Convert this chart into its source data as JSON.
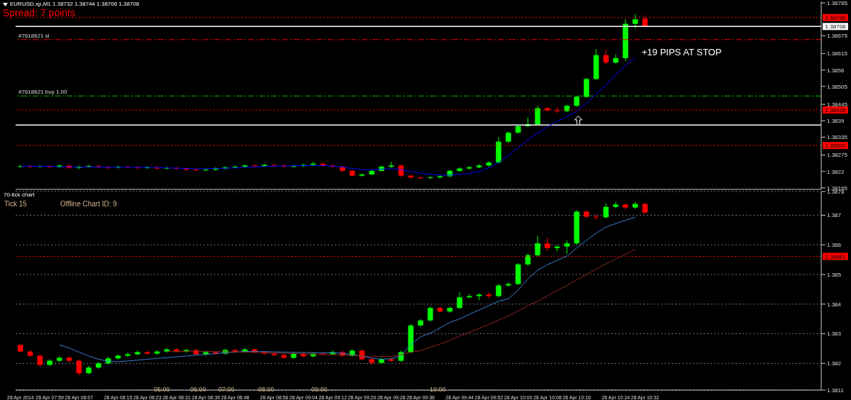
{
  "chart_data": [
    {
      "type": "candlestick",
      "title": "EURUSD.xp,M1  1.38732 1.38744 1.38706 1.38706",
      "subtitle": "Spread: 7 points",
      "annotations": [
        "+19 PIPS AT STOP"
      ],
      "categories": [
        null,
        null,
        null,
        null,
        null,
        null,
        null,
        null,
        null,
        null,
        null,
        null,
        null,
        null,
        null,
        null,
        null,
        null,
        null,
        null,
        null,
        null,
        null,
        null,
        null,
        null,
        null,
        null,
        null,
        null,
        null,
        null,
        null,
        null,
        null,
        null,
        null,
        null,
        null,
        null,
        null,
        null,
        null,
        null,
        null,
        null,
        null,
        null,
        null,
        null,
        null,
        null,
        null,
        null,
        null,
        null,
        null,
        null,
        null,
        null,
        null,
        null,
        null,
        null,
        null
      ],
      "ohlc": [
        [
          1.38236,
          1.38242,
          1.38232,
          1.38238
        ],
        [
          1.38238,
          1.38242,
          1.38232,
          1.38236
        ],
        [
          1.38236,
          1.38241,
          1.38233,
          1.38238
        ],
        [
          1.38238,
          1.38241,
          1.38231,
          1.38235
        ],
        [
          1.38235,
          1.38244,
          1.38232,
          1.3824
        ],
        [
          1.3824,
          1.38243,
          1.38229,
          1.38232
        ],
        [
          1.38232,
          1.3824,
          1.38229,
          1.38236
        ],
        [
          1.38236,
          1.38242,
          1.38233,
          1.38238
        ],
        [
          1.38238,
          1.38241,
          1.38231,
          1.38235
        ],
        [
          1.38235,
          1.38238,
          1.38229,
          1.38233
        ],
        [
          1.38233,
          1.3824,
          1.3823,
          1.38236
        ],
        [
          1.38236,
          1.38239,
          1.3823,
          1.38234
        ],
        [
          1.38234,
          1.38237,
          1.38228,
          1.38232
        ],
        [
          1.38232,
          1.38238,
          1.38229,
          1.38234
        ],
        [
          1.38234,
          1.38237,
          1.38226,
          1.3823
        ],
        [
          1.3823,
          1.38236,
          1.38227,
          1.38232
        ],
        [
          1.38232,
          1.38235,
          1.38225,
          1.38229
        ],
        [
          1.38229,
          1.38232,
          1.38222,
          1.38226
        ],
        [
          1.38226,
          1.38229,
          1.3822,
          1.38224
        ],
        [
          1.38224,
          1.3823,
          1.38221,
          1.38226
        ],
        [
          1.38226,
          1.38234,
          1.38223,
          1.3823
        ],
        [
          1.3823,
          1.38238,
          1.38227,
          1.38234
        ],
        [
          1.38234,
          1.3824,
          1.38231,
          1.38236
        ],
        [
          1.38236,
          1.38244,
          1.38233,
          1.3824
        ],
        [
          1.3824,
          1.38243,
          1.38234,
          1.38238
        ],
        [
          1.38238,
          1.38246,
          1.38235,
          1.38242
        ],
        [
          1.38242,
          1.38245,
          1.38236,
          1.3824
        ],
        [
          1.3824,
          1.38243,
          1.38232,
          1.38236
        ],
        [
          1.38236,
          1.38242,
          1.38233,
          1.38238
        ],
        [
          1.38238,
          1.38246,
          1.38235,
          1.38242
        ],
        [
          1.38242,
          1.38252,
          1.38239,
          1.38246
        ],
        [
          1.38246,
          1.38249,
          1.38236,
          1.3824
        ],
        [
          1.3824,
          1.38243,
          1.38232,
          1.38236
        ],
        [
          1.38236,
          1.38239,
          1.38218,
          1.38222
        ],
        [
          1.38222,
          1.38225,
          1.38202,
          1.38206
        ],
        [
          1.38206,
          1.38214,
          1.38203,
          1.3821
        ],
        [
          1.3821,
          1.38226,
          1.38207,
          1.38222
        ],
        [
          1.38222,
          1.3824,
          1.38219,
          1.38236
        ],
        [
          1.38236,
          1.38252,
          1.38233,
          1.3824
        ],
        [
          1.3824,
          1.38243,
          1.38202,
          1.38206
        ],
        [
          1.38206,
          1.38209,
          1.38196,
          1.382
        ],
        [
          1.382,
          1.38203,
          1.38194,
          1.38198
        ],
        [
          1.38198,
          1.38204,
          1.38195,
          1.382
        ],
        [
          1.382,
          1.38208,
          1.38197,
          1.38204
        ],
        [
          1.38204,
          1.38226,
          1.38201,
          1.38222
        ],
        [
          1.38222,
          1.38234,
          1.38219,
          1.3823
        ],
        [
          1.3823,
          1.38238,
          1.38227,
          1.38234
        ],
        [
          1.38234,
          1.38244,
          1.38231,
          1.3824
        ],
        [
          1.3824,
          1.38254,
          1.38237,
          1.3825
        ],
        [
          1.3825,
          1.38335,
          1.38247,
          1.3832
        ],
        [
          1.3832,
          1.38354,
          1.38317,
          1.3835
        ],
        [
          1.3835,
          1.38376,
          1.38347,
          1.38372
        ],
        [
          1.38372,
          1.384,
          1.38369,
          1.38378
        ],
        [
          1.38378,
          1.3844,
          1.38375,
          1.38432
        ],
        [
          1.38432,
          1.38435,
          1.38418,
          1.38425
        ],
        [
          1.38425,
          1.38436,
          1.38416,
          1.38422
        ],
        [
          1.38422,
          1.38444,
          1.38419,
          1.3844
        ],
        [
          1.3844,
          1.38474,
          1.38437,
          1.3847
        ],
        [
          1.3847,
          1.38534,
          1.38467,
          1.3853
        ],
        [
          1.3853,
          1.3863,
          1.38527,
          1.3861
        ],
        [
          1.3861,
          1.38628,
          1.38578,
          1.38585
        ],
        [
          1.38585,
          1.38612,
          1.38582,
          1.386
        ],
        [
          1.386,
          1.3873,
          1.3859,
          1.38715
        ],
        [
          1.38715,
          1.38748,
          1.387,
          1.3873
        ],
        [
          1.38732,
          1.38744,
          1.38706,
          1.38706
        ]
      ],
      "colors": [
        "#00ff00",
        "#ff0000",
        "#00ff00",
        "#ff0000",
        "#00ff00",
        "#ff0000",
        "#00ff00",
        "#00ff00",
        "#ff0000",
        "#ff0000",
        "#00ff00",
        "#ff0000",
        "#ff0000",
        "#00ff00",
        "#ff0000",
        "#00ff00",
        "#ff0000",
        "#ff0000",
        "#ff0000",
        "#00ff00",
        "#00ff00",
        "#00ff00",
        "#00ff00",
        "#00ff00",
        "#ff0000",
        "#00ff00",
        "#ff0000",
        "#ff0000",
        "#00ff00",
        "#00ff00",
        "#00ff00",
        "#ff0000",
        "#ff0000",
        "#ff0000",
        "#ff0000",
        "#00ff00",
        "#00ff00",
        "#00ff00",
        "#00ff00",
        "#ff0000",
        "#ff0000",
        "#ff0000",
        "#00ff00",
        "#00ff00",
        "#00ff00",
        "#00ff00",
        "#00ff00",
        "#00ff00",
        "#00ff00",
        "#00ff00",
        "#00ff00",
        "#00ff00",
        "#00ff00",
        "#00ff00",
        "#ff0000",
        "#ff0000",
        "#00ff00",
        "#00ff00",
        "#00ff00",
        "#00ff00",
        "#ff0000",
        "#00ff00",
        "#00ff00",
        "#00ff00",
        "#ff0000"
      ],
      "series": [
        {
          "type": "line",
          "color": "#0000ff",
          "values": [
            1.38238,
            1.38238,
            1.38237,
            1.38237,
            1.38236,
            1.38236,
            1.38235,
            1.38235,
            1.38235,
            1.38235,
            1.38234,
            1.38234,
            1.38234,
            1.38234,
            1.38233,
            1.38232,
            1.38231,
            1.3823,
            1.38229,
            1.38229,
            1.3823,
            1.38231,
            1.38232,
            1.38234,
            1.38235,
            1.38237,
            1.38238,
            1.38238,
            1.38239,
            1.3824,
            1.3824,
            1.3824,
            1.38238,
            1.38235,
            1.3823,
            1.38226,
            1.38226,
            1.38228,
            1.3823,
            1.38226,
            1.3822,
            1.38214,
            1.3821,
            1.38208,
            1.38208,
            1.3821,
            1.38214,
            1.3822,
            1.38232,
            1.3825,
            1.38274,
            1.383,
            1.38326,
            1.3835,
            1.3837,
            1.38388,
            1.38405,
            1.3842,
            1.3845,
            1.3848,
            1.3851,
            1.38545,
            1.38575,
            1.38603,
            null
          ]
        }
      ],
      "ylim": [
        1.3816,
        1.3879
      ],
      "yticks": [
        1.38785,
        1.38675,
        1.38615,
        1.3856,
        1.38505,
        1.38445,
        1.3839,
        1.38335,
        1.38275,
        1.3822,
        1.38165
      ],
      "ref_lines": [
        {
          "axis": "y",
          "value": 1.38736,
          "label": "1.38736",
          "color": "#ff0000",
          "line_style": "dotted"
        },
        {
          "axis": "y",
          "value": 1.38706,
          "label": "1.38706",
          "color": "#ffffff",
          "line_style": "solid"
        },
        {
          "axis": "y",
          "value": 1.38662,
          "label": "#7618621 sl",
          "color": "#ff0000",
          "line_style": "dashed"
        },
        {
          "axis": "y",
          "value": 1.38473,
          "label": "#7618621 buy 1.00",
          "color": "#00c000",
          "line_style": "dashed"
        },
        {
          "axis": "y",
          "value": 1.38426,
          "label": "1.38426",
          "color": "#ff0000",
          "line_style": "dotted"
        },
        {
          "axis": "y",
          "value": 1.38376,
          "color": "#ffffff",
          "line_style": "solid"
        },
        {
          "axis": "y",
          "value": 1.38307,
          "label": "1.38307",
          "color": "#ff0000",
          "line_style": "dotted"
        }
      ],
      "tick_labels": "y"
    },
    {
      "type": "candlestick",
      "title": "70-tick chart",
      "annotations": [
        "Tick 15",
        "Offline Chart ID: 9",
        "05:00",
        "06:00",
        "07:00",
        "08:00",
        "09:00",
        "10:00"
      ],
      "categories": [
        "28 Apr 2014",
        null,
        null,
        "28 Apr 07:59",
        null,
        null,
        "28 Apr 08:07",
        null,
        null,
        null,
        "28 Apr 08:15",
        null,
        null,
        "28 Apr 08:23",
        null,
        null,
        "28 Apr 08:31",
        null,
        null,
        "28 Apr 08:39",
        null,
        null,
        "28 Apr 08:48",
        null,
        null,
        null,
        "28 Apr 08:56",
        null,
        null,
        "28 Apr 09:04",
        null,
        null,
        "28 Apr 09:12",
        null,
        null,
        "28 Apr 09:20",
        null,
        null,
        "28 Apr 09:28",
        null,
        null,
        "28 Apr 09:36",
        null,
        null,
        null,
        "28 Apr 09:44",
        null,
        null,
        "28 Apr 09:52",
        null,
        null,
        "28 Apr 10:00",
        null,
        null,
        "28 Apr 10:08",
        null,
        null,
        "28 Apr 10:16",
        null,
        null,
        null,
        "28 Apr 10:24",
        null,
        null,
        "28 Apr 10:32"
      ],
      "ohlc": [
        [
          1.38262,
          1.38266,
          1.38236,
          1.3824
        ],
        [
          1.3824,
          1.38244,
          1.38222,
          1.38226
        ],
        [
          1.38226,
          1.3823,
          1.3819,
          1.38195
        ],
        [
          1.38195,
          1.38214,
          1.38191,
          1.38209
        ],
        [
          1.38209,
          1.38224,
          1.38205,
          1.38219
        ],
        [
          1.38219,
          1.38223,
          1.38204,
          1.38209
        ],
        [
          1.38209,
          1.38213,
          1.3816,
          1.38167
        ],
        [
          1.38167,
          1.38191,
          1.38163,
          1.38186
        ],
        [
          1.38186,
          1.38205,
          1.38182,
          1.382
        ],
        [
          1.382,
          1.38222,
          1.38196,
          1.38217
        ],
        [
          1.38217,
          1.38231,
          1.38213,
          1.38226
        ],
        [
          1.38226,
          1.38236,
          1.38222,
          1.38231
        ],
        [
          1.38231,
          1.38243,
          1.38227,
          1.38238
        ],
        [
          1.38238,
          1.38242,
          1.38229,
          1.38233
        ],
        [
          1.38233,
          1.38245,
          1.38229,
          1.3824
        ],
        [
          1.3824,
          1.38252,
          1.38236,
          1.38247
        ],
        [
          1.38247,
          1.38251,
          1.38236,
          1.3824
        ],
        [
          1.3824,
          1.3825,
          1.38236,
          1.38245
        ],
        [
          1.38245,
          1.38249,
          1.38227,
          1.38231
        ],
        [
          1.38231,
          1.38243,
          1.38227,
          1.38238
        ],
        [
          1.38238,
          1.38242,
          1.38229,
          1.38233
        ],
        [
          1.38233,
          1.3825,
          1.38229,
          1.38245
        ],
        [
          1.38245,
          1.38249,
          1.38236,
          1.3824
        ],
        [
          1.3824,
          1.38252,
          1.38236,
          1.38247
        ],
        [
          1.38247,
          1.38251,
          1.38234,
          1.38238
        ],
        [
          1.38238,
          1.38242,
          1.38229,
          1.38233
        ],
        [
          1.38233,
          1.38237,
          1.38224,
          1.38228
        ],
        [
          1.38228,
          1.38232,
          1.38215,
          1.38219
        ],
        [
          1.38219,
          1.38238,
          1.38215,
          1.38233
        ],
        [
          1.38233,
          1.38237,
          1.3822,
          1.38224
        ],
        [
          1.38224,
          1.38238,
          1.3822,
          1.38233
        ],
        [
          1.38233,
          1.38237,
          1.38227,
          1.38231
        ],
        [
          1.38231,
          1.38243,
          1.38227,
          1.38238
        ],
        [
          1.38238,
          1.38242,
          1.38222,
          1.38226
        ],
        [
          1.38226,
          1.38248,
          1.38222,
          1.38243
        ],
        [
          1.38243,
          1.38247,
          1.3821,
          1.38214
        ],
        [
          1.38214,
          1.38218,
          1.38196,
          1.38202
        ],
        [
          1.38202,
          1.38219,
          1.38198,
          1.38214
        ],
        [
          1.38214,
          1.38218,
          1.38205,
          1.38209
        ],
        [
          1.38209,
          1.38243,
          1.38205,
          1.38238
        ],
        [
          1.38238,
          1.38333,
          1.38234,
          1.38328
        ],
        [
          1.38328,
          1.3835,
          1.38324,
          1.38345
        ],
        [
          1.38345,
          1.38392,
          1.38341,
          1.38387
        ],
        [
          1.38387,
          1.38391,
          1.38371,
          1.38375
        ],
        [
          1.38375,
          1.38392,
          1.38371,
          1.38387
        ],
        [
          1.38387,
          1.3844,
          1.38383,
          1.38423
        ],
        [
          1.38423,
          1.38434,
          1.38419,
          1.38427
        ],
        [
          1.38427,
          1.38437,
          1.38414,
          1.38432
        ],
        [
          1.38432,
          1.3844,
          1.3842,
          1.38427
        ],
        [
          1.38427,
          1.38468,
          1.38423,
          1.38463
        ],
        [
          1.38463,
          1.38473,
          1.38459,
          1.38468
        ],
        [
          1.38468,
          1.38539,
          1.38464,
          1.38534
        ],
        [
          1.38534,
          1.3857,
          1.3853,
          1.38565
        ],
        [
          1.38565,
          1.3863,
          1.38561,
          1.38605
        ],
        [
          1.38605,
          1.38625,
          1.3858,
          1.38589
        ],
        [
          1.38589,
          1.386,
          1.38578,
          1.38594
        ],
        [
          1.38594,
          1.38615,
          1.3857,
          1.38605
        ],
        [
          1.38605,
          1.38717,
          1.38601,
          1.38712
        ],
        [
          1.38712,
          1.38716,
          1.3869,
          1.38695
        ],
        [
          1.38695,
          1.38705,
          1.38685,
          1.38693
        ],
        [
          1.38693,
          1.3874,
          1.38689,
          1.38728
        ],
        [
          1.38728,
          1.38745,
          1.38724,
          1.38736
        ],
        [
          1.38736,
          1.3874,
          1.38721,
          1.38726
        ],
        [
          1.38726,
          1.38745,
          1.38722,
          1.38738
        ],
        [
          1.38738,
          1.38742,
          1.38705,
          1.38709
        ]
      ],
      "colors": [
        "#ff0000",
        "#ff0000",
        "#ff0000",
        "#00ff00",
        "#00ff00",
        "#ff0000",
        "#ff0000",
        "#00ff00",
        "#00ff00",
        "#00ff00",
        "#00ff00",
        "#00ff00",
        "#00ff00",
        "#ff0000",
        "#00ff00",
        "#00ff00",
        "#ff0000",
        "#00ff00",
        "#ff0000",
        "#00ff00",
        "#ff0000",
        "#00ff00",
        "#ff0000",
        "#00ff00",
        "#ff0000",
        "#ff0000",
        "#ff0000",
        "#ff0000",
        "#00ff00",
        "#ff0000",
        "#00ff00",
        "#ff0000",
        "#00ff00",
        "#ff0000",
        "#00ff00",
        "#ff0000",
        "#ff0000",
        "#00ff00",
        "#ff0000",
        "#00ff00",
        "#00ff00",
        "#00ff00",
        "#00ff00",
        "#ff0000",
        "#00ff00",
        "#00ff00",
        "#00ff00",
        "#00ff00",
        "#ff0000",
        "#00ff00",
        "#00ff00",
        "#00ff00",
        "#00ff00",
        "#00ff00",
        "#ff0000",
        "#00ff00",
        "#00ff00",
        "#00ff00",
        "#ff0000",
        "#ff0000",
        "#00ff00",
        "#00ff00",
        "#ff0000",
        "#00ff00",
        "#ff0000"
      ],
      "series": [
        {
          "type": "line",
          "color": "#3a7fd0",
          "values": [
            null,
            null,
            null,
            null,
            1.38262,
            1.38252,
            1.38238,
            1.38225,
            1.38214,
            1.38207,
            1.38206,
            1.38208,
            1.38211,
            1.38214,
            1.38217,
            1.38219,
            1.38222,
            1.38225,
            1.38228,
            1.3823,
            1.38233,
            1.38236,
            1.38238,
            1.3824,
            1.3824,
            1.3824,
            1.38239,
            1.38238,
            1.38237,
            1.38237,
            1.38236,
            1.38236,
            1.38236,
            1.38234,
            1.3823,
            1.38224,
            1.38218,
            1.38214,
            1.38216,
            1.38226,
            1.38264,
            1.3829,
            1.38302,
            1.3832,
            1.38338,
            1.3835,
            1.38366,
            1.3838,
            1.38395,
            1.3841,
            1.38418,
            1.38448,
            1.38485,
            1.38515,
            1.38533,
            1.38548,
            1.38562,
            1.3859,
            1.38615,
            1.3864,
            1.3866,
            1.38672,
            1.38683,
            1.38693,
            null
          ]
        },
        {
          "type": "line",
          "color": "#8b2a20",
          "values": [
            null,
            null,
            null,
            null,
            null,
            null,
            null,
            null,
            null,
            null,
            null,
            null,
            null,
            null,
            null,
            1.3824,
            1.3824,
            1.38241,
            1.38241,
            1.3824,
            1.3824,
            1.38239,
            1.38239,
            1.38238,
            1.38237,
            1.38236,
            1.38235,
            1.38234,
            1.38233,
            1.38232,
            1.38231,
            1.3823,
            1.38229,
            1.38228,
            1.38227,
            1.38225,
            1.38224,
            1.38223,
            1.38224,
            1.3823,
            1.38238,
            1.38243,
            1.38255,
            1.38265,
            1.38278,
            1.38292,
            1.38305,
            1.38318,
            1.38332,
            1.38346,
            1.3836,
            1.38377,
            1.38395,
            1.3841,
            1.38428,
            1.38446,
            1.38463,
            1.38482,
            1.385,
            1.38518,
            1.38536,
            1.38552,
            1.38568,
            1.38585,
            null
          ]
        }
      ],
      "ylim": [
        1.3811,
        1.3878
      ],
      "yticks": [
        1.3878,
        1.387,
        1.386,
        1.385,
        1.384,
        1.383,
        1.382,
        1.3811
      ],
      "ref_lines": [
        {
          "axis": "y",
          "value": 1.38561,
          "label": "1.38561",
          "color": "#ff0000",
          "line_style": "dotted"
        }
      ],
      "grid": "y"
    }
  ]
}
